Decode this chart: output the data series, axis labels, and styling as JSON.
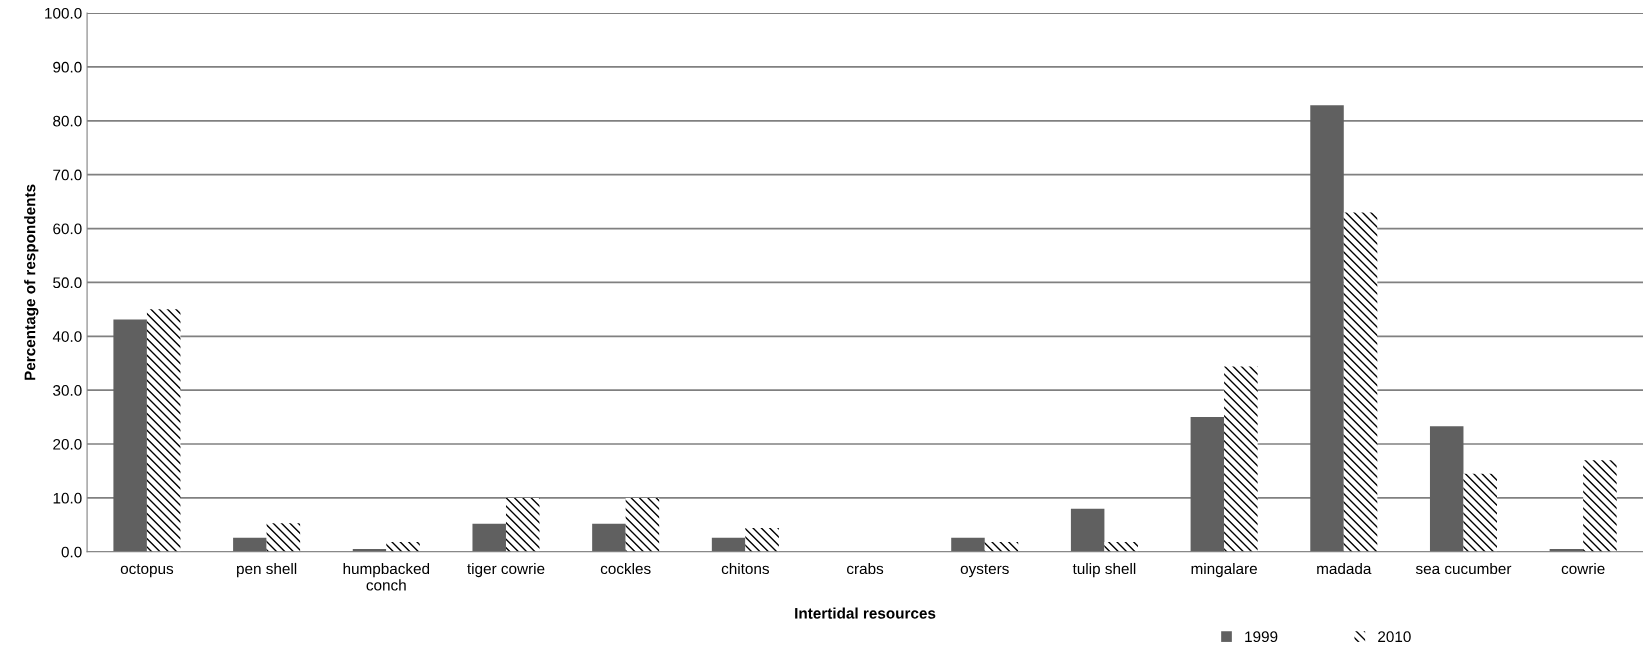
{
  "chart_data": {
    "type": "bar",
    "xlabel": "Intertidal resources",
    "ylabel": "Percentage of respondents",
    "categories": [
      "octopus",
      "pen shell",
      "humpbacked\nconch",
      "tiger cowrie",
      "cockles",
      "chitons",
      "crabs",
      "oysters",
      "tulip shell",
      "mingalare",
      "madada",
      "sea cucumber",
      "cowrie"
    ],
    "series": [
      {
        "name": "1999",
        "color": "#606060",
        "values": [
          43.1,
          2.6,
          0.5,
          5.2,
          5.2,
          2.6,
          0,
          2.6,
          8.0,
          25.0,
          82.9,
          23.3,
          0.5
        ]
      },
      {
        "name": "2010",
        "color": "#000000",
        "values": [
          45.0,
          5.3,
          1.8,
          10.0,
          10.0,
          4.4,
          0,
          1.8,
          1.8,
          34.4,
          63.0,
          14.5,
          17.0
        ]
      }
    ],
    "ylim": [
      0,
      100
    ],
    "yticks": [
      {
        "value": 0,
        "label": "0.0"
      },
      {
        "value": 10,
        "label": "10.0"
      },
      {
        "value": 20,
        "label": "20.0"
      },
      {
        "value": 30,
        "label": "30.0"
      },
      {
        "value": 40,
        "label": "40.0"
      },
      {
        "value": 50,
        "label": "50.0"
      },
      {
        "value": 60,
        "label": "60.0"
      },
      {
        "value": 70,
        "label": "70.0"
      },
      {
        "value": 80,
        "label": "80.0"
      },
      {
        "value": 90,
        "label": "90.0"
      },
      {
        "value": 100,
        "label": "100.0"
      }
    ],
    "grid": "y",
    "legend": "bottom right"
  }
}
